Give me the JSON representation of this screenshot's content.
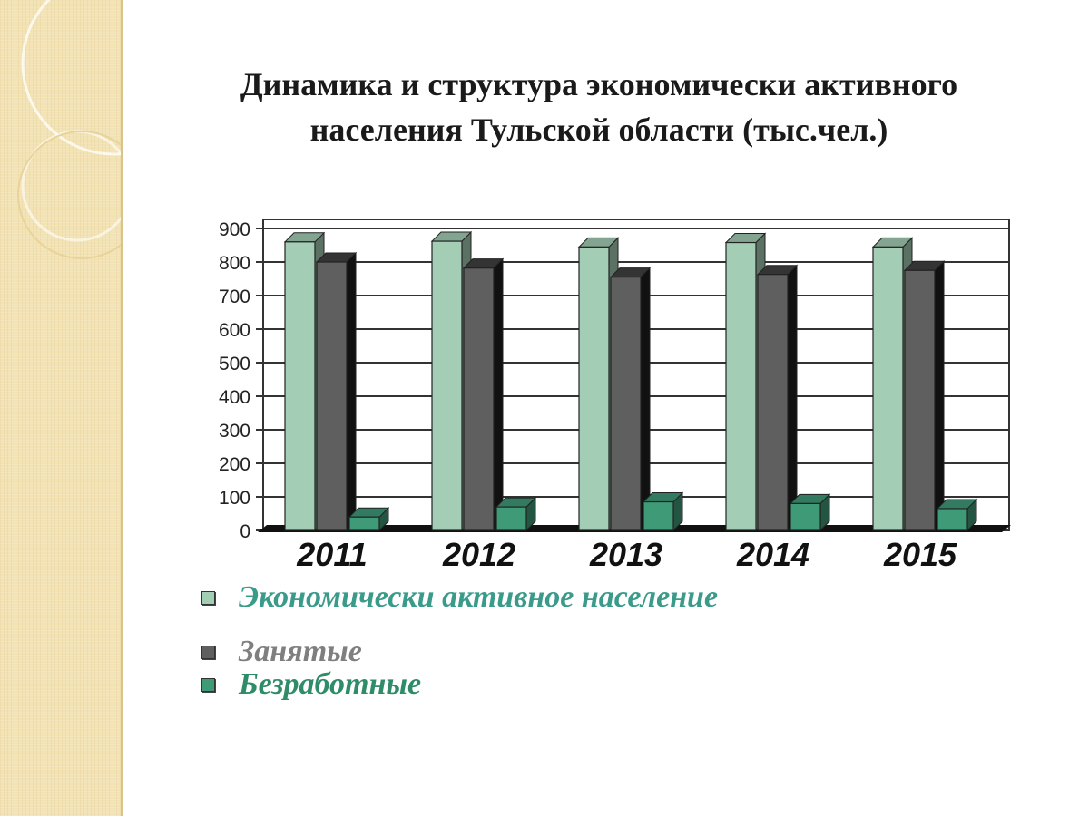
{
  "slide": {
    "title_line1": "Динамика и структура экономически активного",
    "title_line2": "населения Тульской области (тыс.чел.)"
  },
  "colors": {
    "active": "#a3cdb5",
    "employed": "#5f5f5f",
    "unemployed": "#3f9a78",
    "active_text": "#3b9b8a",
    "employed_text": "#7f7f7f",
    "unemployed_text": "#2e8c68"
  },
  "chart_data": {
    "type": "bar",
    "categories": [
      "2011",
      "2012",
      "2013",
      "2014",
      "2015"
    ],
    "series": [
      {
        "name": "Экономически активное население",
        "values": [
          860,
          862,
          845,
          858,
          845
        ]
      },
      {
        "name": "Занятые",
        "values": [
          800,
          782,
          755,
          763,
          775
        ]
      },
      {
        "name": "Безработные",
        "values": [
          40,
          70,
          85,
          80,
          65
        ]
      }
    ],
    "yticks": [
      "0",
      "100",
      "200",
      "300",
      "400",
      "500",
      "600",
      "700",
      "800",
      "900"
    ],
    "ylim": [
      0,
      900
    ],
    "grid": true,
    "legend_position": "bottom-left"
  }
}
